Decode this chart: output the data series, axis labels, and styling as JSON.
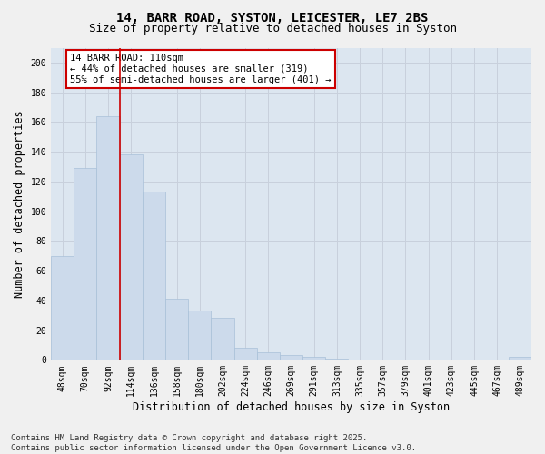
{
  "title_line1": "14, BARR ROAD, SYSTON, LEICESTER, LE7 2BS",
  "title_line2": "Size of property relative to detached houses in Syston",
  "xlabel": "Distribution of detached houses by size in Syston",
  "ylabel": "Number of detached properties",
  "categories": [
    "48sqm",
    "70sqm",
    "92sqm",
    "114sqm",
    "136sqm",
    "158sqm",
    "180sqm",
    "202sqm",
    "224sqm",
    "246sqm",
    "269sqm",
    "291sqm",
    "313sqm",
    "335sqm",
    "357sqm",
    "379sqm",
    "401sqm",
    "423sqm",
    "445sqm",
    "467sqm",
    "489sqm"
  ],
  "values": [
    70,
    129,
    164,
    138,
    113,
    41,
    33,
    28,
    8,
    5,
    3,
    2,
    1,
    0,
    0,
    0,
    0,
    0,
    0,
    0,
    2
  ],
  "bar_color": "#ccdaeb",
  "bar_edge_color": "#a8c0d8",
  "vline_pos": 2.5,
  "vline_color": "#cc0000",
  "annotation_text": "14 BARR ROAD: 110sqm\n← 44% of detached houses are smaller (319)\n55% of semi-detached houses are larger (401) →",
  "annotation_box_color": "#ffffff",
  "annotation_box_edge": "#cc0000",
  "ylim": [
    0,
    210
  ],
  "yticks": [
    0,
    20,
    40,
    60,
    80,
    100,
    120,
    140,
    160,
    180,
    200
  ],
  "grid_color": "#c8d0dc",
  "bg_color": "#dce6f0",
  "fig_color": "#f0f0f0",
  "footer_line1": "Contains HM Land Registry data © Crown copyright and database right 2025.",
  "footer_line2": "Contains public sector information licensed under the Open Government Licence v3.0.",
  "title_fontsize": 10,
  "subtitle_fontsize": 9,
  "axis_label_fontsize": 8.5,
  "tick_fontsize": 7,
  "annotation_fontsize": 7.5,
  "footer_fontsize": 6.5
}
